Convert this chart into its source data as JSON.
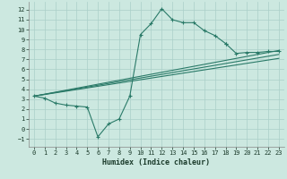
{
  "xlabel": "Humidex (Indice chaleur)",
  "bg_color": "#cce8e0",
  "grid_color": "#aacfc8",
  "line_color": "#2a7a68",
  "xlim": [
    -0.5,
    23.5
  ],
  "ylim": [
    -1.8,
    12.8
  ],
  "xticks": [
    0,
    1,
    2,
    3,
    4,
    5,
    6,
    7,
    8,
    9,
    10,
    11,
    12,
    13,
    14,
    15,
    16,
    17,
    18,
    19,
    20,
    21,
    22,
    23
  ],
  "yticks": [
    -1,
    0,
    1,
    2,
    3,
    4,
    5,
    6,
    7,
    8,
    9,
    10,
    11,
    12
  ],
  "x_main": [
    0,
    1,
    2,
    3,
    4,
    5,
    6,
    7,
    8,
    9,
    10,
    11,
    12,
    13,
    14,
    15,
    16,
    17,
    18
  ],
  "y_main": [
    3.3,
    3.1,
    2.6,
    2.4,
    2.3,
    2.2,
    -0.8,
    0.5,
    1.0,
    3.3,
    9.5,
    10.6,
    12.1,
    11.0,
    10.7,
    10.7,
    9.9,
    9.4,
    8.6
  ],
  "x_tail": [
    18,
    19,
    20,
    21,
    22,
    23
  ],
  "y_tail": [
    8.6,
    7.6,
    7.7,
    7.7,
    7.8,
    7.8
  ],
  "reg_lines": [
    {
      "x": [
        0,
        23
      ],
      "y": [
        3.3,
        7.9
      ]
    },
    {
      "x": [
        0,
        23
      ],
      "y": [
        3.3,
        7.5
      ]
    },
    {
      "x": [
        0,
        23
      ],
      "y": [
        3.3,
        7.1
      ]
    }
  ]
}
